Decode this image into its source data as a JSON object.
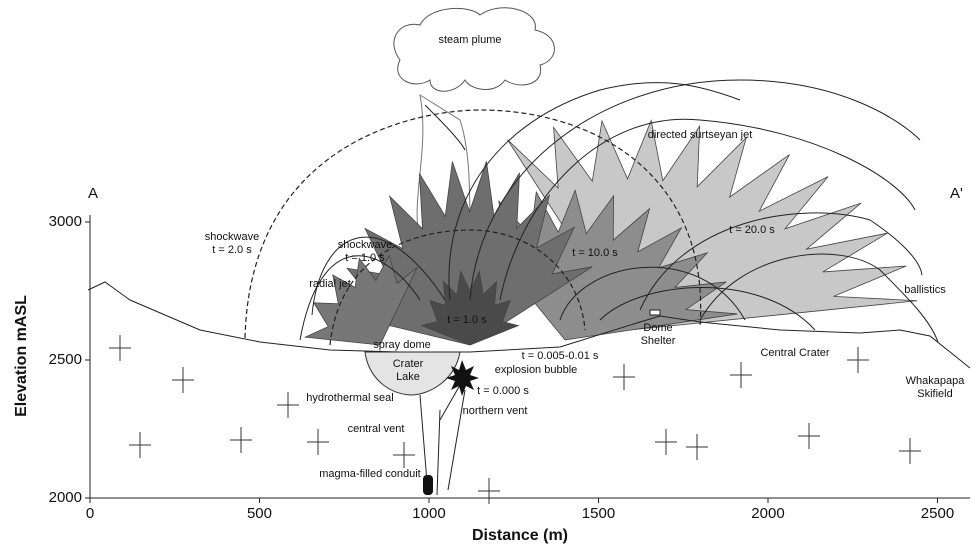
{
  "axes": {
    "xlabel": "Distance (m)",
    "ylabel": "Elevation mASL",
    "xlim": [
      0,
      2590
    ],
    "ylim": [
      2000,
      3000
    ],
    "xticks": [
      0,
      500,
      1000,
      1500,
      2000,
      2500
    ],
    "yticks": [
      2000,
      2500,
      3000
    ]
  },
  "section": {
    "start": "A",
    "end": "A'"
  },
  "labels": {
    "steam_plume": "steam plume",
    "jet": "directed surtseyan jet",
    "shockwave_2": [
      "shockwave",
      "t = 2.0 s"
    ],
    "shockwave_1": [
      "shockwave",
      "t = 1.0 s"
    ],
    "radial_jet": "radial jet",
    "t10": "t = 10.0 s",
    "t20": "t = 20.0 s",
    "t1": "t = 1.0 s",
    "ballistics": "ballistics",
    "spray_dome": "spray dome",
    "crater_lake": [
      "Crater",
      "Lake"
    ],
    "t_bubble": "t = 0.005-0.01 s",
    "bubble": "explosion bubble",
    "t0": "t = 0.000 s",
    "dome_shelter": [
      "Dome",
      "Shelter"
    ],
    "central_crater": "Central Crater",
    "skifield": [
      "Whakapapa",
      "Skifield"
    ],
    "seal": "hydrothermal seal",
    "northern_vent": "northern vent",
    "central_vent": "central vent",
    "conduit": "magma-filled conduit"
  }
}
